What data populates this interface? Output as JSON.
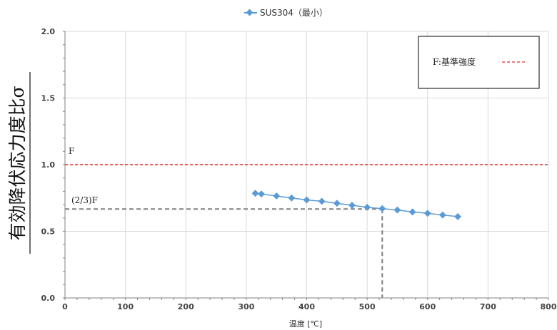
{
  "chart_data": {
    "type": "line",
    "title": "",
    "xlabel": "温度 [℃]",
    "ylabel": "有効降伏応力度比σ",
    "xlim": [
      0,
      800
    ],
    "ylim": [
      0.0,
      2.0
    ],
    "x_ticks": [
      "0",
      "100",
      "200",
      "300",
      "400",
      "500",
      "600",
      "700",
      "800"
    ],
    "y_ticks": [
      "0.0",
      "0.5",
      "1.0",
      "1.5",
      "2.0"
    ],
    "grid": true,
    "legend_top": "SUS304（最小）",
    "legend_box": "F:基準強度",
    "series": [
      {
        "name": "SUS304（最小）",
        "color": "#5b9bd5",
        "x": [
          315,
          325,
          350,
          375,
          400,
          425,
          450,
          475,
          500,
          525,
          550,
          575,
          600,
          625,
          650
        ],
        "y": [
          0.785,
          0.78,
          0.765,
          0.75,
          0.735,
          0.725,
          0.71,
          0.695,
          0.68,
          0.67,
          0.66,
          0.645,
          0.635,
          0.622,
          0.61
        ]
      }
    ],
    "reference_lines": [
      {
        "label": "F",
        "y": 1.0,
        "color": "#e03030",
        "style": "dashed"
      },
      {
        "label": "(2/3)F",
        "y": 0.667,
        "x_end": 525,
        "color": "#808080",
        "style": "dashed"
      }
    ]
  }
}
